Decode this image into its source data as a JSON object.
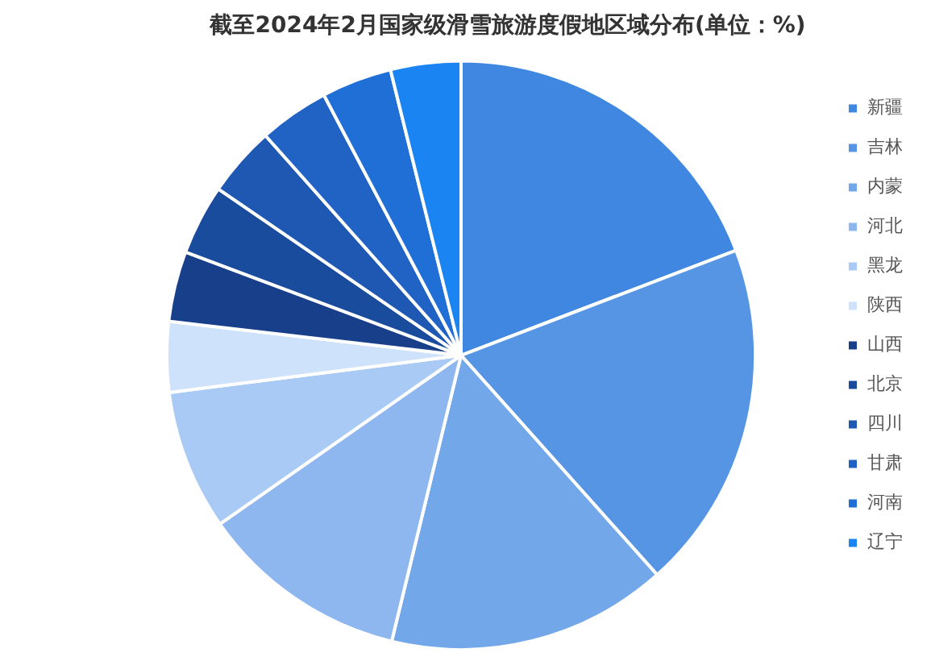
{
  "chart_data": {
    "type": "pie",
    "title": "截至2024年2月国家级滑雪旅游度假地区域分布(单位：%)",
    "categories": [
      "新疆",
      "吉林",
      "内蒙",
      "河北",
      "黑龙",
      "陕西",
      "山西",
      "北京",
      "四川",
      "甘肃",
      "河南",
      "辽宁"
    ],
    "values": [
      19.2,
      19.2,
      15.4,
      11.5,
      7.7,
      3.86,
      3.86,
      3.86,
      3.86,
      3.86,
      3.86,
      3.86
    ],
    "colors": [
      "#3f87e0",
      "#5595e4",
      "#72a7e9",
      "#8db7ee",
      "#a9caf5",
      "#cfe2fb",
      "#173f8a",
      "#1a4c9e",
      "#1e58b2",
      "#2063c4",
      "#1f6fd6",
      "#1a84f2"
    ],
    "legend": "right"
  }
}
